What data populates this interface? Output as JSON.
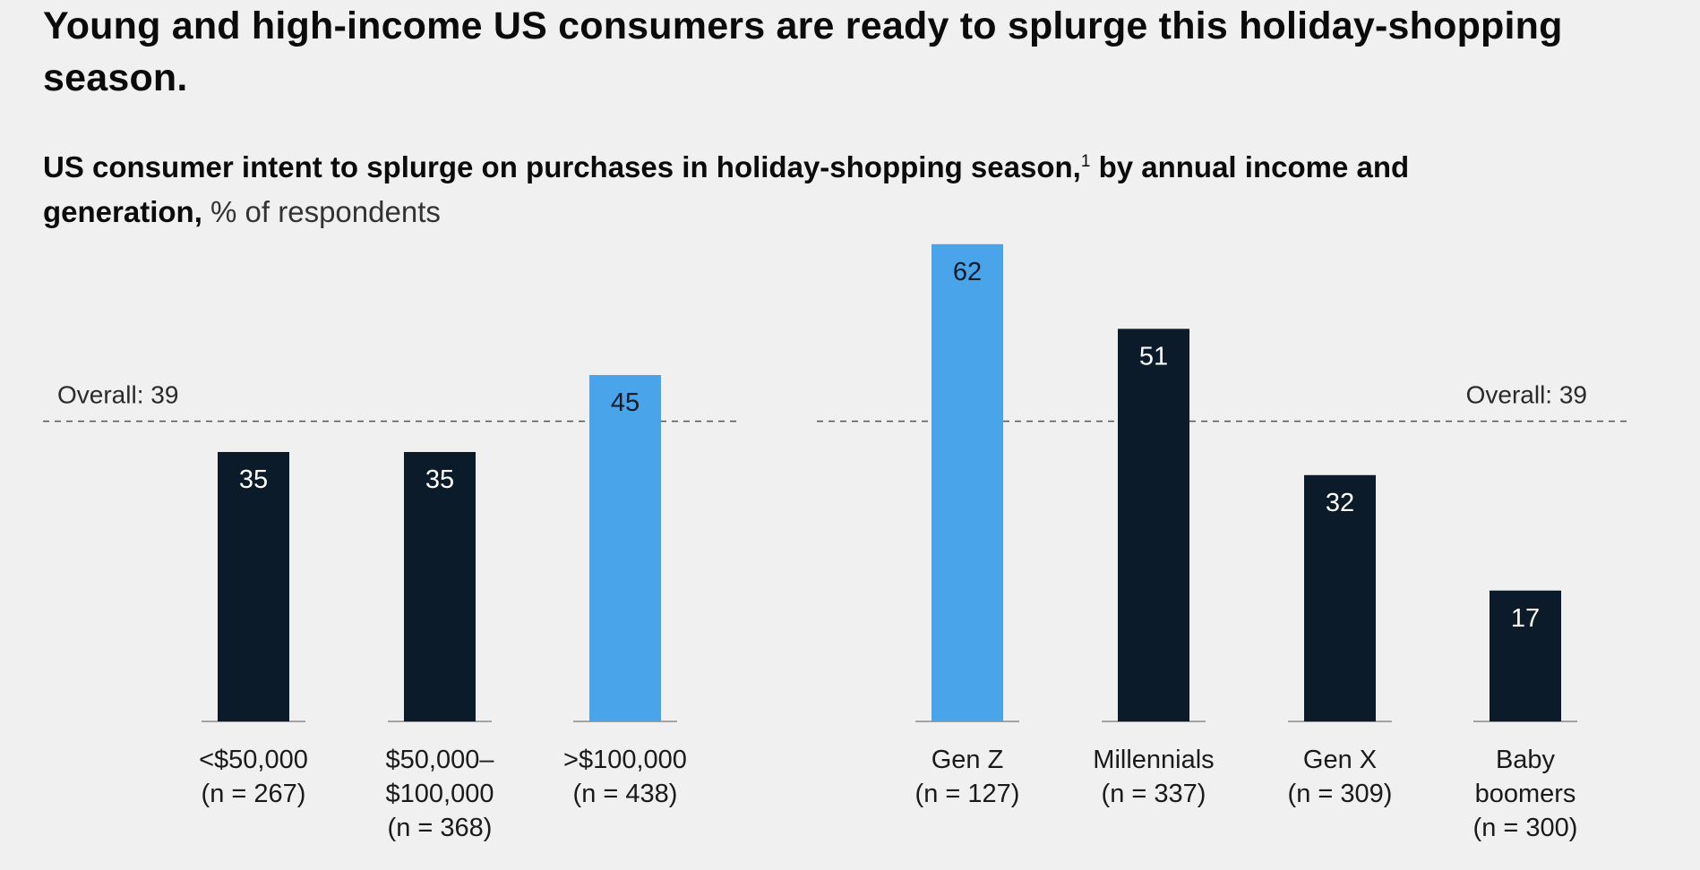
{
  "title": "Young and high-income US consumers are ready to splurge this holiday-shopping season.",
  "subtitle": {
    "bold_part1": "US consumer intent to splurge on purchases in holiday-shopping season,",
    "footnote": "1",
    "bold_part2": " by annual income and generation,",
    "unit": " % of respondents"
  },
  "colors": {
    "highlight": "#4aa4ea",
    "dark": "#0c1b2a",
    "text": "#1a1a1a",
    "bg": "#f0f0f0"
  },
  "chart_data": [
    {
      "type": "bar",
      "group": "annual income",
      "categories": [
        [
          "<$50,000",
          "(n = 267)"
        ],
        [
          "$50,000–",
          "$100,000",
          "(n = 368)"
        ],
        [
          ">$100,000",
          "(n = 438)"
        ]
      ],
      "values": [
        35,
        35,
        45
      ],
      "highlight": [
        false,
        false,
        true
      ],
      "reference_line": {
        "label": "Overall: 39",
        "value": 39,
        "label_position": "left"
      },
      "ylim": [
        0,
        62
      ]
    },
    {
      "type": "bar",
      "group": "generation",
      "categories": [
        [
          "Gen Z",
          "(n = 127)"
        ],
        [
          "Millennials",
          "(n = 337)"
        ],
        [
          "Gen X",
          "(n = 309)"
        ],
        [
          "Baby",
          "boomers",
          "(n = 300)"
        ]
      ],
      "values": [
        62,
        51,
        32,
        17
      ],
      "highlight": [
        true,
        false,
        false,
        false
      ],
      "reference_line": {
        "label": "Overall: 39",
        "value": 39,
        "label_position": "right"
      },
      "ylim": [
        0,
        62
      ]
    }
  ]
}
